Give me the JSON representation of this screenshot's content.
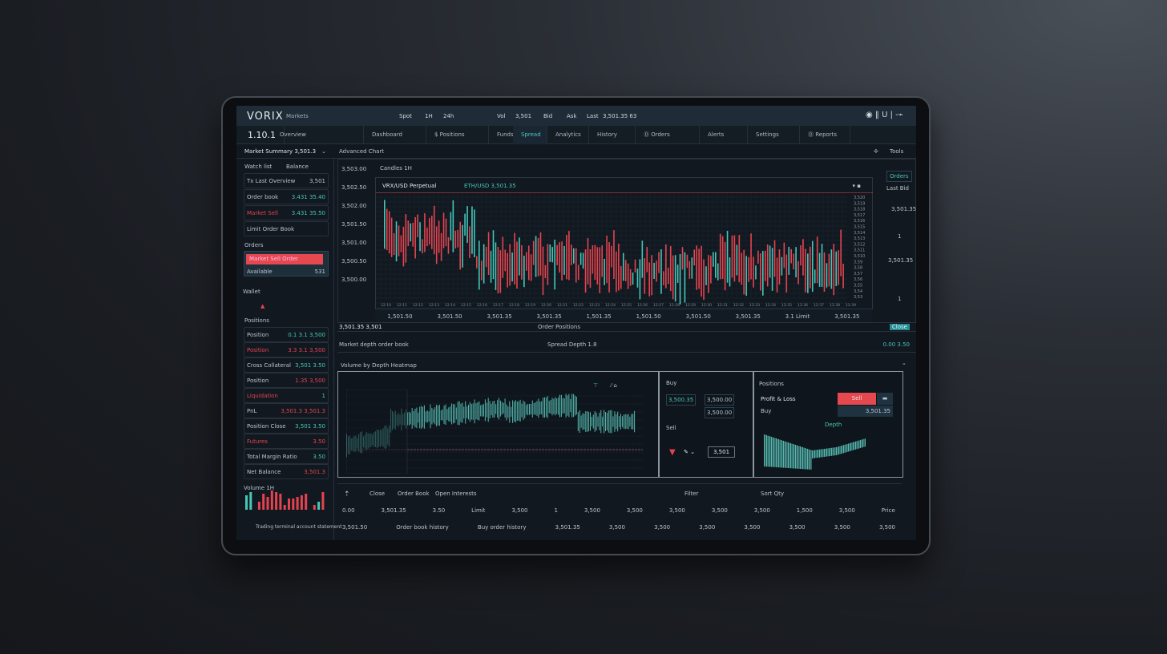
{
  "app": {
    "logo": "VORIX",
    "subtitle": "Markets",
    "top_items": [
      "Spot",
      "1H",
      "24h",
      "Vol",
      "3,501",
      "Bid",
      "Ask",
      "Last",
      "3,501.35 63"
    ],
    "top_right": "◉ ‖  U | -⌁"
  },
  "tabs": [
    {
      "label": "1.10.1"
    },
    {
      "label": "Overview"
    },
    {
      "label": "Dashboard"
    },
    {
      "label": "$ Positions"
    },
    {
      "label": "Funds"
    },
    {
      "label": "Spread"
    },
    {
      "label": "Analytics"
    },
    {
      "label": "History"
    },
    {
      "label": "Ⓓ Orders"
    },
    {
      "label": "Alerts"
    },
    {
      "label": "Settings"
    },
    {
      "label": "Ⓓ Reports"
    }
  ],
  "subbar": {
    "left": "Market Summary  3,501.3",
    "section": "Advanced Chart",
    "right_icon": "pin",
    "right_label": "Tools"
  },
  "sidebar": {
    "head": [
      "Watch list",
      "Balance"
    ],
    "items": [
      {
        "label": "Tx  Last  Overview",
        "value": "3,501"
      },
      {
        "label": "Order book",
        "value": "3.431 35.40"
      },
      {
        "label": "Market  Sell",
        "value": "3.431 35.50"
      },
      {
        "label": "Limit  Order  Book",
        "value": ""
      }
    ],
    "order_title": "Orders",
    "order_button": "Market Sell Order",
    "order_meta": [
      "Available",
      "531"
    ],
    "wallet_title": "Wallet",
    "positions_title": "Positions",
    "positions": [
      {
        "label": "Position",
        "value": "0.1 3.1 3,500"
      },
      {
        "label": "Position",
        "value": "3.3 3.1 3,500"
      },
      {
        "label": "Cross Collateral",
        "value": "3,501 3.50"
      },
      {
        "label": "Position",
        "value": "1.35 3,500"
      },
      {
        "label": "Liquidation",
        "value": "1"
      },
      {
        "label": "PnL",
        "value": "3,501.3 3,501.3"
      },
      {
        "label": "Position Close",
        "value": "3,501 3.50"
      },
      {
        "label": "Futures",
        "value": "3.50"
      },
      {
        "label": "Total Margin Ratio",
        "value": "3.50"
      },
      {
        "label": "Net Balance",
        "value": "3,501.3"
      }
    ],
    "mini_chart_title": "Volume 1H",
    "footer": "Trading terminal account statement"
  },
  "chart": {
    "price_labels": [
      "3,503.00",
      "3,502.50",
      "3,502.00",
      "3,501.50",
      "3,501.00",
      "3,500.50",
      "3,500.00"
    ],
    "legend": "ETH/USD  3,501.35",
    "title": "Candles 1H",
    "pair": "VRX/USD  Perpetual",
    "right_labels": [
      "Orders",
      "Last Bid",
      "3,501.35",
      "1",
      "3,501.35",
      "1"
    ],
    "toolbar": [
      "1,501.50",
      "3,501.50",
      "3,501.35",
      "3,501.35",
      "1,501.35",
      "1,501.50",
      "3,501.50",
      "3,501.35",
      "3.1 Limit",
      "3,501.35"
    ],
    "status_left": "3,501.35 3,501",
    "status_mid": "Order  Positions",
    "status_right": "Close"
  },
  "row_info": {
    "left": "Market depth order book",
    "mid": "Spread  Depth  1.8",
    "right": "0.00  3.50"
  },
  "lower": {
    "header": "Volume by Depth Heatmap",
    "p2": {
      "title": "Buy",
      "cells": [
        "3,500.35",
        "3,500.00",
        "3,500.00"
      ],
      "title2": "Sell",
      "input": "3,501"
    },
    "p3": {
      "title": "Positions",
      "row": "Profit & Loss",
      "pill": "Sell",
      "sub": "Buy",
      "sub2": "3,501.35",
      "label": "Depth"
    }
  },
  "bottom": {
    "left": [
      "Close",
      "Order Book",
      "Open Interests"
    ],
    "mid_right": "Filter",
    "right": "Sort  Qty",
    "row1": [
      "0.00",
      "3,501.35",
      "3.50",
      "Limit",
      "3,500",
      "1",
      "3,500",
      "3,500",
      "3,500",
      "3,500",
      "3,500",
      "1,500",
      "3,500",
      "Price"
    ],
    "row2": [
      "3,501.50",
      "Order book history",
      "Buy order history",
      "3,501.35",
      "3,500",
      "3,500",
      "3,500",
      "3,500",
      "3,500",
      "3,500",
      "3,500"
    ]
  },
  "colors": {
    "up": "#45c7b9",
    "down": "#e5444f",
    "bg": "#111820",
    "accent": "#4cc6c0"
  }
}
